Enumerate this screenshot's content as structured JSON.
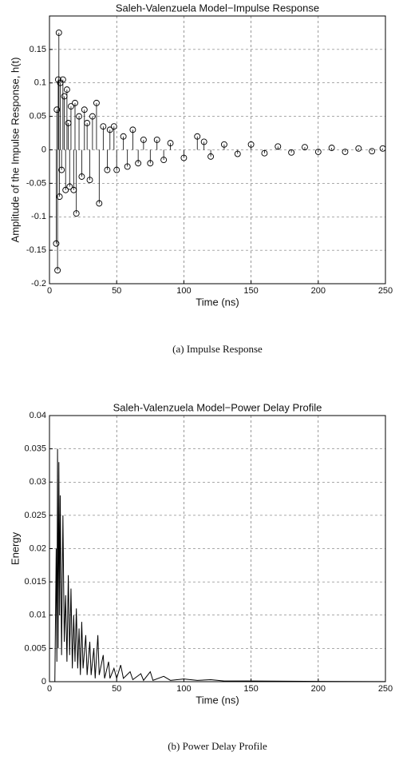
{
  "chart_data": [
    {
      "type": "stem",
      "title": "Saleh-Valenzuela Model−Impulse Response",
      "x_label": "Time (ns)",
      "y_label": "Amplitude of the Impulse Response, h(t)",
      "caption": "(a) Impulse Response",
      "x": [
        5,
        5.5,
        6,
        6.5,
        7,
        7.5,
        8,
        9,
        10,
        11,
        12,
        13,
        14,
        15,
        16,
        18,
        19,
        20,
        22,
        24,
        26,
        28,
        30,
        32,
        35,
        37,
        40,
        43,
        45,
        48,
        50,
        55,
        58,
        62,
        66,
        70,
        75,
        80,
        85,
        90,
        100,
        110,
        115,
        120,
        130,
        140,
        150,
        160,
        170,
        180,
        190,
        200,
        210,
        220,
        230,
        240,
        248
      ],
      "values": [
        -0.14,
        0.06,
        -0.18,
        0.105,
        0.175,
        -0.07,
        0.1,
        -0.03,
        0.105,
        0.08,
        -0.06,
        0.09,
        0.04,
        -0.055,
        0.065,
        -0.06,
        0.07,
        -0.095,
        0.05,
        -0.04,
        0.06,
        0.04,
        -0.045,
        0.05,
        0.07,
        -0.08,
        0.035,
        -0.03,
        0.03,
        0.035,
        -0.03,
        0.02,
        -0.025,
        0.03,
        -0.02,
        0.015,
        -0.02,
        0.015,
        -0.015,
        0.01,
        -0.012,
        0.02,
        0.012,
        -0.01,
        0.008,
        -0.006,
        0.008,
        -0.005,
        0.005,
        -0.004,
        0.004,
        -0.003,
        0.003,
        -0.003,
        0.002,
        -0.002,
        0.002
      ],
      "color": "#000000",
      "marker": "circle",
      "xlim": [
        0,
        250
      ],
      "xticks": [
        0,
        50,
        100,
        150,
        200,
        250
      ],
      "ylim": [
        -0.2,
        0.2
      ],
      "yticks": [
        -0.2,
        -0.15,
        -0.1,
        -0.05,
        0,
        0.05,
        0.1,
        0.15
      ],
      "grid": true
    },
    {
      "type": "line",
      "title": "Saleh-Valenzuela Model−Power Delay Profile",
      "x_label": "Time (ns)",
      "y_label": "Energy",
      "caption": "(b) Power Delay Profile",
      "x": [
        0,
        4,
        5,
        5.5,
        6,
        6.5,
        7,
        7.5,
        8,
        9,
        10,
        11,
        12,
        13,
        14,
        15,
        16,
        17,
        18,
        19,
        20,
        21,
        22,
        23,
        24,
        25,
        27,
        28,
        30,
        31,
        33,
        34,
        36,
        37,
        40,
        41,
        44,
        45,
        48,
        50,
        53,
        55,
        60,
        62,
        68,
        70,
        75,
        77,
        85,
        90,
        100,
        110,
        120,
        130,
        150,
        200,
        250
      ],
      "values": [
        0,
        0,
        0.02,
        0.003,
        0.035,
        0.005,
        0.033,
        0.01,
        0.028,
        0.004,
        0.025,
        0.006,
        0.013,
        0.003,
        0.016,
        0.004,
        0.014,
        0.002,
        0.01,
        0.003,
        0.011,
        0.002,
        0.008,
        0.001,
        0.009,
        0.002,
        0.007,
        0.001,
        0.006,
        0.001,
        0.005,
        0.0005,
        0.007,
        0.001,
        0.004,
        0.0005,
        0.003,
        0.0005,
        0.002,
        0.0005,
        0.0025,
        0.0005,
        0.0015,
        0.0003,
        0.0012,
        0.0002,
        0.0015,
        0.0002,
        0.0008,
        0.0002,
        0.0004,
        0.0002,
        0.0003,
        0.0001,
        0.0001,
        5e-05,
        2e-05
      ],
      "color": "#000000",
      "xlim": [
        0,
        250
      ],
      "xticks": [
        0,
        50,
        100,
        150,
        200,
        250
      ],
      "ylim": [
        0,
        0.04
      ],
      "yticks": [
        0,
        0.005,
        0.01,
        0.015,
        0.02,
        0.025,
        0.03,
        0.035,
        0.04
      ],
      "grid": true
    }
  ]
}
